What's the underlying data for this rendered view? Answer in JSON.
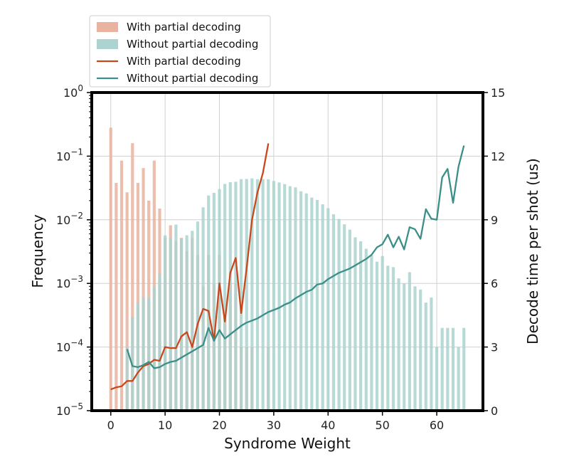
{
  "chart_data": {
    "type": "bar",
    "xlabel": "Syndrome Weight",
    "ylabel": "Frequency",
    "y2label": "Decode time per shot (us)",
    "xlim": [
      -3.5,
      68.5
    ],
    "ylim": [
      1e-05,
      1
    ],
    "yscale": "log",
    "y2lim": [
      0,
      15
    ],
    "x_ticks": [
      0,
      10,
      20,
      30,
      40,
      50,
      60
    ],
    "y_ticks": [
      {
        "value": 1,
        "base": "10",
        "exp": "0"
      },
      {
        "value": 0.1,
        "base": "10",
        "exp": "−1"
      },
      {
        "value": 0.01,
        "base": "10",
        "exp": "−2"
      },
      {
        "value": 0.001,
        "base": "10",
        "exp": "−3"
      },
      {
        "value": 0.0001,
        "base": "10",
        "exp": "−4"
      },
      {
        "value": 1e-05,
        "base": "10",
        "exp": "−5"
      }
    ],
    "y2_ticks": [
      0,
      3,
      6,
      9,
      12,
      15
    ],
    "grid": true,
    "legend_position": "above-left",
    "legend": [
      {
        "label": "With partial decoding",
        "kind": "bar",
        "color": "#e9b3a0"
      },
      {
        "label": "Without partial decoding",
        "kind": "bar",
        "color": "#acd3d0"
      },
      {
        "label": "With partial decoding",
        "kind": "line",
        "color": "#c8481e"
      },
      {
        "label": "Without partial decoding",
        "kind": "line",
        "color": "#3a8f88"
      }
    ],
    "series": [
      {
        "kind": "bar",
        "axis": "left",
        "color": "#e9b3a0",
        "opacity": 0.85,
        "x": [
          0,
          1,
          2,
          3,
          4,
          5,
          6,
          7,
          8,
          9,
          10,
          11,
          12,
          13,
          14,
          15,
          16,
          17,
          18,
          19,
          20,
          21,
          22,
          23,
          24,
          25,
          26,
          27,
          28,
          29
        ],
        "values": [
          0.28,
          0.038,
          0.085,
          0.027,
          0.16,
          0.038,
          0.065,
          0.02,
          0.085,
          0.015,
          0.0052,
          0.0082,
          0.0046,
          0.0052,
          0.0032,
          0.0052,
          0.0028,
          0.0009,
          0.0028,
          0.001,
          0.0028,
          0.0003,
          0.001,
          0.001,
          0.0001,
          0.0001,
          0.0001,
          0.0,
          0.0,
          0.0001
        ]
      },
      {
        "kind": "bar",
        "axis": "left",
        "color": "#acd3d0",
        "opacity": 0.85,
        "x": [
          3,
          4,
          5,
          6,
          7,
          8,
          9,
          10,
          11,
          12,
          13,
          14,
          15,
          16,
          17,
          18,
          19,
          20,
          21,
          22,
          23,
          24,
          25,
          26,
          27,
          28,
          29,
          30,
          31,
          32,
          33,
          34,
          35,
          36,
          37,
          38,
          39,
          40,
          41,
          42,
          43,
          44,
          45,
          46,
          47,
          48,
          49,
          50,
          51,
          52,
          53,
          54,
          55,
          56,
          57,
          58,
          59,
          60,
          61,
          62,
          63,
          64,
          65
        ],
        "values": [
          0.0001,
          0.0003,
          0.0005,
          0.0006,
          0.0006,
          0.0009,
          0.0014,
          0.0057,
          0.0052,
          0.0084,
          0.0051,
          0.0057,
          0.0067,
          0.0094,
          0.0157,
          0.0241,
          0.0265,
          0.0305,
          0.0366,
          0.039,
          0.0396,
          0.0435,
          0.0438,
          0.0447,
          0.0432,
          0.0437,
          0.0433,
          0.0407,
          0.0386,
          0.0363,
          0.0337,
          0.0323,
          0.028,
          0.026,
          0.0223,
          0.0205,
          0.0175,
          0.0152,
          0.0122,
          0.0103,
          0.0085,
          0.007,
          0.0053,
          0.0046,
          0.0035,
          0.0028,
          0.0022,
          0.0027,
          0.0019,
          0.0018,
          0.0012,
          0.001,
          0.0015,
          0.0009,
          0.0008,
          0.0005,
          0.0006,
          0.0001,
          0.0002,
          0.0002,
          0.0002,
          0.0001,
          0.0002
        ]
      },
      {
        "kind": "line",
        "axis": "right",
        "color": "#c8481e",
        "x": [
          0,
          1,
          2,
          3,
          4,
          5,
          6,
          7,
          8,
          9,
          10,
          11,
          12,
          13,
          14,
          15,
          16,
          17,
          18,
          19,
          20,
          21,
          22,
          23,
          24,
          25,
          26,
          27,
          28,
          29
        ],
        "y": [
          1.0,
          1.1,
          1.15,
          1.4,
          1.4,
          1.8,
          2.1,
          2.2,
          2.4,
          2.35,
          3.0,
          2.95,
          2.95,
          3.5,
          3.7,
          3.0,
          4.1,
          4.8,
          4.7,
          3.3,
          6.0,
          4.2,
          6.5,
          7.2,
          4.6,
          6.7,
          9.0,
          10.3,
          11.2,
          12.6
        ]
      },
      {
        "kind": "line",
        "axis": "right",
        "color": "#3a8f88",
        "x": [
          3,
          4,
          5,
          6,
          7,
          8,
          9,
          10,
          11,
          12,
          13,
          14,
          15,
          16,
          17,
          18,
          19,
          20,
          21,
          22,
          23,
          24,
          25,
          26,
          27,
          28,
          29,
          30,
          31,
          32,
          33,
          34,
          35,
          36,
          37,
          38,
          39,
          40,
          41,
          42,
          43,
          44,
          45,
          46,
          47,
          48,
          49,
          50,
          51,
          52,
          53,
          54,
          55,
          56,
          57,
          58,
          59,
          60,
          61,
          62,
          63,
          64,
          65
        ],
        "y": [
          2.9,
          2.1,
          2.05,
          2.15,
          2.3,
          2.0,
          2.05,
          2.2,
          2.3,
          2.35,
          2.5,
          2.65,
          2.8,
          2.95,
          3.1,
          3.9,
          3.3,
          3.8,
          3.4,
          3.6,
          3.8,
          4.0,
          4.15,
          4.25,
          4.35,
          4.5,
          4.65,
          4.75,
          4.85,
          5.0,
          5.1,
          5.3,
          5.45,
          5.6,
          5.7,
          5.95,
          6.0,
          6.2,
          6.35,
          6.5,
          6.6,
          6.7,
          6.85,
          7.0,
          7.15,
          7.35,
          7.7,
          7.85,
          8.3,
          7.7,
          8.2,
          7.6,
          8.65,
          8.55,
          8.1,
          9.5,
          9.05,
          9.0,
          11.0,
          11.4,
          9.8,
          11.5,
          12.5
        ]
      }
    ]
  }
}
